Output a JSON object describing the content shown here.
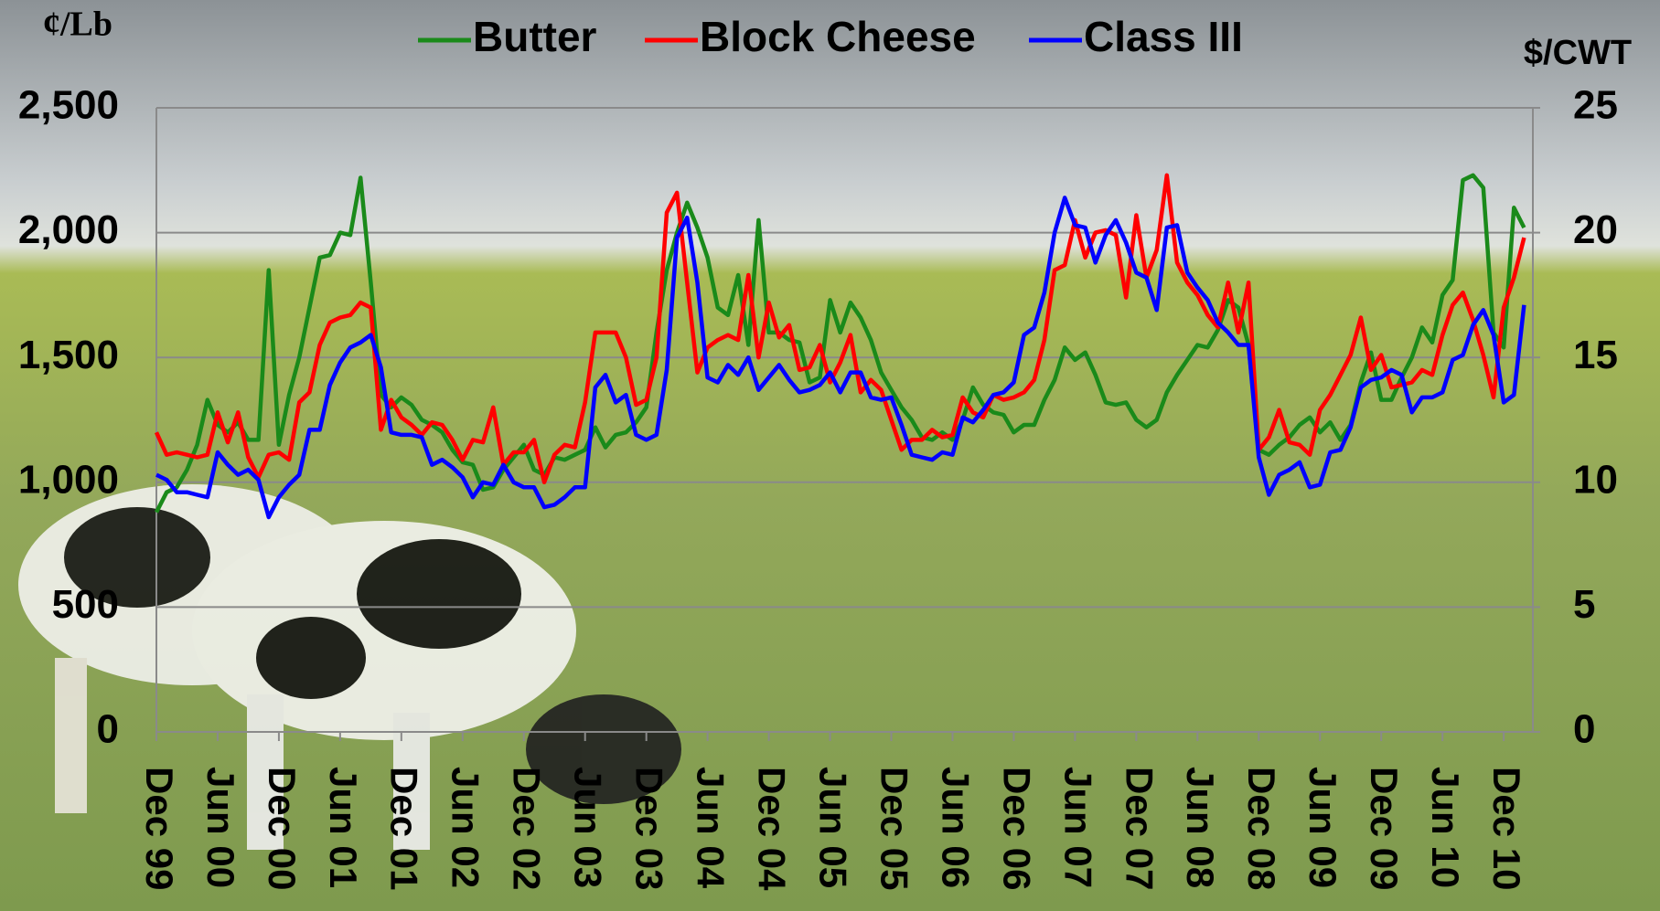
{
  "chart_data": {
    "type": "line",
    "ylabel": "¢/Lb",
    "y2label": "$/CWT",
    "categories": [
      "Dec 99",
      null,
      null,
      null,
      null,
      null,
      "Jun 00",
      null,
      null,
      null,
      null,
      null,
      "Dec 00",
      null,
      null,
      null,
      null,
      null,
      "Jun 01",
      null,
      null,
      null,
      null,
      null,
      "Dec 01",
      null,
      null,
      null,
      null,
      null,
      "Jun 02",
      null,
      null,
      null,
      null,
      null,
      "Dec 02",
      null,
      null,
      null,
      null,
      null,
      "Jun 03",
      null,
      null,
      null,
      null,
      null,
      "Dec 03",
      null,
      null,
      null,
      null,
      null,
      "Jun 04",
      null,
      null,
      null,
      null,
      null,
      "Dec 04",
      null,
      null,
      null,
      null,
      null,
      "Jun 05",
      null,
      null,
      null,
      null,
      null,
      "Dec 05",
      null,
      null,
      null,
      null,
      null,
      "Jun 06",
      null,
      null,
      null,
      null,
      null,
      "Dec 06",
      null,
      null,
      null,
      null,
      null,
      "Jun 07",
      null,
      null,
      null,
      null,
      null,
      "Dec 07",
      null,
      null,
      null,
      null,
      null,
      "Jun 08",
      null,
      null,
      null,
      null,
      null,
      "Dec 08",
      null,
      null,
      null,
      null,
      null,
      "Jun 09",
      null,
      null,
      null,
      null,
      null,
      "Dec 09",
      null,
      null,
      null,
      null,
      null,
      "Jun 10",
      null,
      null,
      null,
      null,
      null,
      "Dec 10",
      null,
      null
    ],
    "series": [
      {
        "name": "Butter",
        "color": "#1a8a1a",
        "values": [
          880,
          960,
          980,
          1050,
          1150,
          1330,
          1230,
          1200,
          1240,
          1170,
          1170,
          1850,
          1150,
          1350,
          1500,
          1700,
          1900,
          1910,
          2000,
          1990,
          2220,
          1800,
          1350,
          1300,
          1340,
          1310,
          1250,
          1230,
          1200,
          1130,
          1080,
          1070,
          970,
          980,
          1050,
          1100,
          1150,
          1050,
          1030,
          1100,
          1090,
          1110,
          1130,
          1220,
          1140,
          1190,
          1200,
          1240,
          1300,
          1600,
          1850,
          2000,
          2120,
          2020,
          1900,
          1700,
          1670,
          1830,
          1550,
          2050,
          1600,
          1600,
          1570,
          1560,
          1400,
          1420,
          1730,
          1600,
          1720,
          1660,
          1570,
          1440,
          1370,
          1300,
          1250,
          1180,
          1170,
          1200,
          1170,
          1250,
          1380,
          1310,
          1280,
          1270,
          1200,
          1230,
          1230,
          1330,
          1410,
          1540,
          1490,
          1520,
          1430,
          1320,
          1310,
          1320,
          1250,
          1220,
          1250,
          1360,
          1430,
          1490,
          1550,
          1540,
          1610,
          1730,
          1700,
          1550,
          1130,
          1110,
          1150,
          1180,
          1230,
          1260,
          1200,
          1240,
          1170,
          1230,
          1400,
          1520,
          1330,
          1330,
          1420,
          1500,
          1620,
          1560,
          1750,
          1810,
          2210,
          2230,
          2180,
          1600,
          1540,
          2100,
          2020
        ]
      },
      {
        "name": "Block Cheese",
        "color": "#ff0000",
        "values": [
          1200,
          1110,
          1120,
          1110,
          1100,
          1110,
          1280,
          1160,
          1280,
          1100,
          1020,
          1110,
          1120,
          1090,
          1320,
          1360,
          1550,
          1640,
          1660,
          1670,
          1720,
          1700,
          1210,
          1330,
          1260,
          1230,
          1190,
          1240,
          1230,
          1170,
          1090,
          1170,
          1160,
          1300,
          1070,
          1120,
          1120,
          1170,
          1000,
          1110,
          1150,
          1140,
          1320,
          1600,
          1600,
          1600,
          1500,
          1310,
          1330,
          1500,
          2080,
          2160,
          1800,
          1440,
          1540,
          1570,
          1590,
          1570,
          1830,
          1500,
          1720,
          1580,
          1630,
          1450,
          1460,
          1550,
          1400,
          1480,
          1590,
          1360,
          1410,
          1370,
          1250,
          1130,
          1170,
          1170,
          1210,
          1180,
          1190,
          1340,
          1280,
          1260,
          1350,
          1330,
          1340,
          1360,
          1410,
          1570,
          1850,
          1870,
          2050,
          1900,
          2000,
          2010,
          1990,
          1740,
          2070,
          1820,
          1930,
          2230,
          1880,
          1800,
          1750,
          1670,
          1620,
          1800,
          1600,
          1800,
          1130,
          1180,
          1290,
          1160,
          1150,
          1110,
          1290,
          1350,
          1430,
          1510,
          1660,
          1450,
          1510,
          1380,
          1390,
          1400,
          1450,
          1430,
          1590,
          1710,
          1760,
          1650,
          1510,
          1340,
          1700,
          1820,
          1980
        ]
      },
      {
        "name": "Class III",
        "color": "#0000ff",
        "axis": "y2",
        "values": [
          10.3,
          10.1,
          9.6,
          9.6,
          9.5,
          9.4,
          11.2,
          10.7,
          10.3,
          10.5,
          10.1,
          8.6,
          9.4,
          9.9,
          10.3,
          12.1,
          12.1,
          13.9,
          14.8,
          15.4,
          15.6,
          15.9,
          14.6,
          12.0,
          11.9,
          11.9,
          11.8,
          10.7,
          10.9,
          10.6,
          10.2,
          9.4,
          10.0,
          9.9,
          10.7,
          10.0,
          9.8,
          9.8,
          9.0,
          9.1,
          9.4,
          9.8,
          9.8,
          13.8,
          14.3,
          13.2,
          13.5,
          11.9,
          11.7,
          11.9,
          14.5,
          19.8,
          20.6,
          18.0,
          14.2,
          14.0,
          14.7,
          14.3,
          15.0,
          13.7,
          14.2,
          14.7,
          14.1,
          13.6,
          13.7,
          13.9,
          14.4,
          13.6,
          14.4,
          14.4,
          13.4,
          13.3,
          13.4,
          12.3,
          11.1,
          11.0,
          10.9,
          11.2,
          11.1,
          12.6,
          12.4,
          12.9,
          13.5,
          13.6,
          14.0,
          15.9,
          16.2,
          17.6,
          20.0,
          21.4,
          20.3,
          20.2,
          18.8,
          19.9,
          20.5,
          19.6,
          18.4,
          18.2,
          16.9,
          20.2,
          20.3,
          18.4,
          17.8,
          17.3,
          16.4,
          16.0,
          15.5,
          15.5,
          11.0,
          9.5,
          10.3,
          10.5,
          10.8,
          9.8,
          9.9,
          11.2,
          11.3,
          12.2,
          13.8,
          14.1,
          14.2,
          14.5,
          14.3,
          12.8,
          13.4,
          13.4,
          13.6,
          14.9,
          15.1,
          16.3,
          16.9,
          15.9,
          13.2,
          13.5,
          17.1
        ]
      }
    ],
    "ylim": [
      0,
      2500
    ],
    "yticks": [
      0,
      500,
      {
        "value": 1000,
        "label": "1,000"
      },
      {
        "value": 1500,
        "label": "1,500"
      },
      {
        "value": 2000,
        "label": "2,000"
      },
      {
        "value": 2500,
        "label": "2,500"
      }
    ],
    "y2lim": [
      0,
      25
    ],
    "y2ticks": [
      0,
      5,
      10,
      15,
      20,
      25
    ],
    "grid": true,
    "legend": "top"
  }
}
